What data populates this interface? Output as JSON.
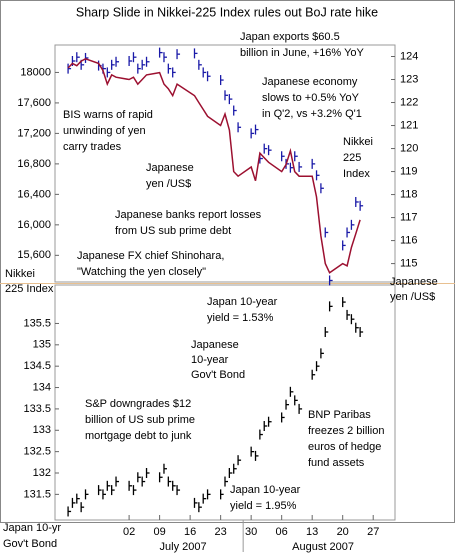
{
  "chart_data": [
    {
      "type": "line",
      "title": "Sharp Slide in Nikkei-225 Index rules out BoJ rate hike",
      "x": [
        "2007-06-18",
        "2007-06-19",
        "2007-06-20",
        "2007-06-21",
        "2007-06-22",
        "2007-06-25",
        "2007-06-26",
        "2007-06-27",
        "2007-06-28",
        "2007-06-29",
        "2007-07-02",
        "2007-07-03",
        "2007-07-04",
        "2007-07-05",
        "2007-07-06",
        "2007-07-09",
        "2007-07-10",
        "2007-07-11",
        "2007-07-12",
        "2007-07-13",
        "2007-07-17",
        "2007-07-18",
        "2007-07-19",
        "2007-07-20",
        "2007-07-23",
        "2007-07-24",
        "2007-07-25",
        "2007-07-26",
        "2007-07-27",
        "2007-07-30",
        "2007-07-31",
        "2007-08-01",
        "2007-08-02",
        "2007-08-03",
        "2007-08-06",
        "2007-08-07",
        "2007-08-08",
        "2007-08-09",
        "2007-08-10",
        "2007-08-13",
        "2007-08-14",
        "2007-08-15",
        "2007-08-16",
        "2007-08-17",
        "2007-08-20",
        "2007-08-21",
        "2007-08-22",
        "2007-08-23",
        "2007-08-24"
      ],
      "xlim": [
        "2007-06-15",
        "2007-09-01"
      ],
      "series": [
        {
          "name": "Nikkei 225 Index",
          "color": "#1a1aa8",
          "style": "tick",
          "values": [
            18050,
            18150,
            18200,
            18100,
            18190,
            18090,
            18050,
            18000,
            18100,
            18140,
            18150,
            18200,
            18050,
            18100,
            18140,
            18260,
            18200,
            18050,
            18000,
            18240,
            18250,
            18100,
            18000,
            17950,
            17900,
            17700,
            17650,
            17500,
            17280,
            17200,
            17250,
            16870,
            17000,
            16980,
            16900,
            16800,
            16750,
            16900,
            16760,
            16800,
            16650,
            16480,
            15900,
            15270,
            15730,
            15900,
            16000,
            16300,
            16250
          ]
        },
        {
          "name": "Japanese yen /US$",
          "color": "#9c1030",
          "style": "line",
          "axis": "y2",
          "values": [
            123.5,
            123.7,
            123.6,
            123.8,
            123.9,
            123.7,
            123.4,
            122.8,
            123.2,
            123.1,
            123.0,
            123.1,
            122.8,
            123.0,
            123.2,
            123.3,
            122.8,
            122.6,
            122.3,
            122.8,
            122.3,
            122.0,
            121.7,
            121.4,
            121.0,
            121.5,
            120.8,
            119.0,
            118.8,
            119.2,
            118.6,
            119.8,
            119.6,
            119.4,
            119.0,
            119.3,
            119.9,
            119.0,
            118.8,
            118.8,
            117.9,
            116.2,
            115.0,
            114.6,
            115.0,
            114.9,
            115.7,
            116.3,
            116.9
          ]
        }
      ],
      "ylim": [
        15250,
        18360
      ],
      "yticks": [
        {
          "value": 18000,
          "label": "18000"
        },
        {
          "value": 17600,
          "label": "17,600"
        },
        {
          "value": 17200,
          "label": "17,200"
        },
        {
          "value": 16800,
          "label": "16,800"
        },
        {
          "value": 16400,
          "label": "16,400"
        },
        {
          "value": 16000,
          "label": "16,000"
        },
        {
          "value": 15600,
          "label": "15,600"
        }
      ],
      "y2lim": [
        114.2,
        124.5
      ],
      "y2ticks": [
        124,
        123,
        122,
        121,
        120,
        119,
        118,
        117,
        116,
        115
      ],
      "annotations": [
        {
          "lines": [
            "Japan exports $60.5",
            "billion in June, +16% YoY"
          ],
          "color": "#000000"
        },
        {
          "lines": [
            "Japanese economy",
            "slows to +0.5% YoY",
            "in Q'2, vs +3.2% Q'1"
          ],
          "color": "#000000"
        },
        {
          "lines": [
            "BIS warns of rapid",
            "unwinding of yen",
            "carry trades"
          ],
          "color": "#000000"
        },
        {
          "lines": [
            "Japanese",
            "yen /US$"
          ],
          "color": "#9c1030"
        },
        {
          "lines": [
            "Nikkei",
            "225",
            "Index"
          ],
          "color": "#1a1aa8"
        },
        {
          "lines": [
            "Japanese banks report losses",
            "from US sub prime debt"
          ],
          "color": "#000000"
        },
        {
          "lines": [
            "Japanese FX chief Shinohara,",
            "\"Watching the yen closely\""
          ],
          "color": "#000000"
        },
        {
          "lines": [
            "Nikkei",
            "225 Index"
          ],
          "color": "#1a1aa8"
        },
        {
          "lines": [
            "Japanese",
            "yen /US$"
          ],
          "color": "#9c1030"
        }
      ]
    },
    {
      "type": "line",
      "x": [
        "2007-06-18",
        "2007-06-19",
        "2007-06-20",
        "2007-06-21",
        "2007-06-22",
        "2007-06-25",
        "2007-06-26",
        "2007-06-27",
        "2007-06-28",
        "2007-06-29",
        "2007-07-02",
        "2007-07-03",
        "2007-07-04",
        "2007-07-05",
        "2007-07-06",
        "2007-07-09",
        "2007-07-10",
        "2007-07-11",
        "2007-07-12",
        "2007-07-13",
        "2007-07-17",
        "2007-07-18",
        "2007-07-19",
        "2007-07-20",
        "2007-07-23",
        "2007-07-24",
        "2007-07-25",
        "2007-07-26",
        "2007-07-27",
        "2007-07-30",
        "2007-07-31",
        "2007-08-01",
        "2007-08-02",
        "2007-08-03",
        "2007-08-06",
        "2007-08-07",
        "2007-08-08",
        "2007-08-09",
        "2007-08-10",
        "2007-08-13",
        "2007-08-14",
        "2007-08-15",
        "2007-08-16",
        "2007-08-17",
        "2007-08-20",
        "2007-08-21",
        "2007-08-22",
        "2007-08-23",
        "2007-08-24"
      ],
      "xlim": [
        "2007-06-15",
        "2007-09-01"
      ],
      "xticks": [
        {
          "value": "2007-07-02",
          "label": "02"
        },
        {
          "value": "2007-07-09",
          "label": "09"
        },
        {
          "value": "2007-07-16",
          "label": "16"
        },
        {
          "value": "2007-07-23",
          "label": "23"
        },
        {
          "value": "2007-07-30",
          "label": "30"
        },
        {
          "value": "2007-08-06",
          "label": "06"
        },
        {
          "value": "2007-08-13",
          "label": "13"
        },
        {
          "value": "2007-08-20",
          "label": "20"
        },
        {
          "value": "2007-08-27",
          "label": "27"
        }
      ],
      "months": [
        "July 2007",
        "August 2007"
      ],
      "series": [
        {
          "name": "Japan 10-yr Gov't Bond",
          "color": "#000000",
          "style": "tick",
          "values": [
            131.1,
            131.3,
            131.4,
            131.2,
            131.5,
            131.6,
            131.5,
            131.7,
            131.6,
            131.8,
            131.7,
            131.6,
            131.9,
            131.8,
            132.0,
            131.9,
            132.1,
            131.8,
            131.7,
            131.6,
            131.3,
            131.2,
            131.4,
            131.5,
            131.5,
            131.8,
            132.0,
            132.1,
            132.3,
            132.5,
            132.4,
            132.9,
            133.1,
            133.2,
            133.3,
            133.6,
            133.9,
            133.7,
            133.5,
            134.3,
            134.5,
            134.8,
            135.3,
            135.9,
            136.0,
            135.7,
            135.6,
            135.4,
            135.3
          ]
        }
      ],
      "ylim": [
        130.9,
        136.4
      ],
      "yticks": [
        135.5,
        135,
        134.5,
        134,
        133.5,
        133,
        132.5,
        132,
        131.5
      ],
      "annotations": [
        {
          "lines": [
            "Japan 10-year",
            "yield = 1.53%"
          ],
          "color": "#000000"
        },
        {
          "lines": [
            "Japanese",
            "10-year",
            "Gov't Bond"
          ],
          "color": "#000000"
        },
        {
          "lines": [
            "S&P downgrades $12",
            "billion of US sub prime",
            "mortgage debt to junk"
          ],
          "color": "#000000"
        },
        {
          "lines": [
            "BNP Paribas",
            "freezes 2 billion",
            "euros of hedge",
            "fund assets"
          ],
          "color": "#000000"
        },
        {
          "lines": [
            "Japan 10-year",
            "yield = 1.95%"
          ],
          "color": "#000000"
        },
        {
          "lines": [
            "Japan 10-yr",
            "Gov't Bond"
          ],
          "color": "#000000"
        }
      ]
    }
  ]
}
